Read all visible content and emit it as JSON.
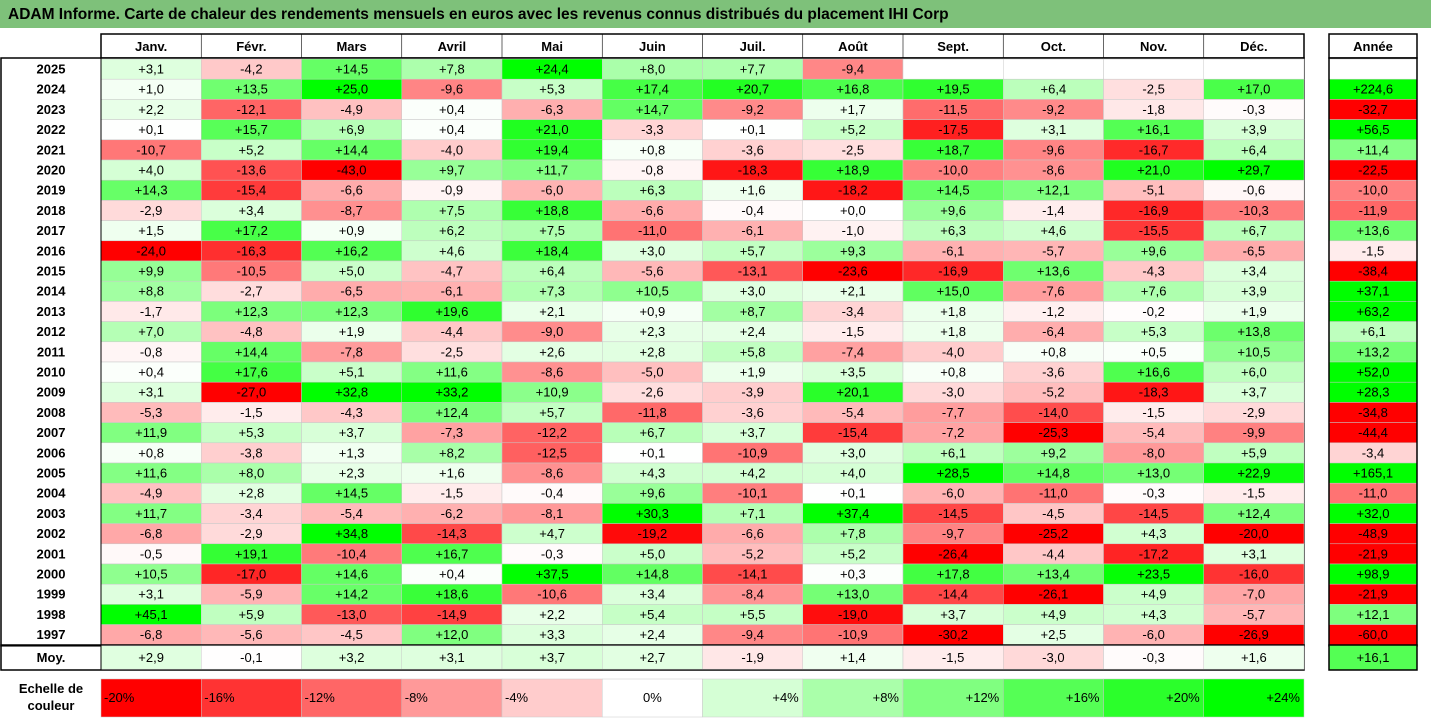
{
  "title": "ADAM Informe. Carte de chaleur des rendements mensuels en euros avec les revenus connus distribués du placement IHI Corp",
  "chart_data": {
    "type": "heatmap",
    "months": [
      "Janv.",
      "Févr.",
      "Mars",
      "Avril",
      "Mai",
      "Juin",
      "Juil.",
      "Août",
      "Sept.",
      "Oct.",
      "Nov.",
      "Déc."
    ],
    "year_header": "Année",
    "rows": [
      {
        "year": "2025",
        "values": [
          "+3,1",
          "-4,2",
          "+14,5",
          "+7,8",
          "+24,4",
          "+8,0",
          "+7,7",
          "-9,4",
          "",
          "",
          "",
          ""
        ],
        "annual": ""
      },
      {
        "year": "2024",
        "values": [
          "+1,0",
          "+13,5",
          "+25,0",
          "-9,6",
          "+5,3",
          "+17,4",
          "+20,7",
          "+16,8",
          "+19,5",
          "+6,4",
          "-2,5",
          "+17,0"
        ],
        "annual": "+224,6"
      },
      {
        "year": "2023",
        "values": [
          "+2,2",
          "-12,1",
          "-4,9",
          "+0,4",
          "-6,3",
          "+14,7",
          "-9,2",
          "+1,7",
          "-11,5",
          "-9,2",
          "-1,8",
          "-0,3"
        ],
        "annual": "-32,7"
      },
      {
        "year": "2022",
        "values": [
          "+0,1",
          "+15,7",
          "+6,9",
          "+0,4",
          "+21,0",
          "-3,3",
          "+0,1",
          "+5,2",
          "-17,5",
          "+3,1",
          "+16,1",
          "+3,9"
        ],
        "annual": "+56,5"
      },
      {
        "year": "2021",
        "values": [
          "-10,7",
          "+5,2",
          "+14,4",
          "-4,0",
          "+19,4",
          "+0,8",
          "-3,6",
          "-2,5",
          "+18,7",
          "-9,6",
          "-16,7",
          "+6,4"
        ],
        "annual": "+11,4"
      },
      {
        "year": "2020",
        "values": [
          "+4,0",
          "-13,6",
          "-43,0",
          "+9,7",
          "+11,7",
          "-0,8",
          "-18,3",
          "+18,9",
          "-10,0",
          "-8,6",
          "+21,0",
          "+29,7"
        ],
        "annual": "-22,5"
      },
      {
        "year": "2019",
        "values": [
          "+14,3",
          "-15,4",
          "-6,6",
          "-0,9",
          "-6,0",
          "+6,3",
          "+1,6",
          "-18,2",
          "+14,5",
          "+12,1",
          "-5,1",
          "-0,6"
        ],
        "annual": "-10,0"
      },
      {
        "year": "2018",
        "values": [
          "-2,9",
          "+3,4",
          "-8,7",
          "+7,5",
          "+18,8",
          "-6,6",
          "-0,4",
          "+0,0",
          "+9,6",
          "-1,4",
          "-16,9",
          "-10,3"
        ],
        "annual": "-11,9"
      },
      {
        "year": "2017",
        "values": [
          "+1,5",
          "+17,2",
          "+0,9",
          "+6,2",
          "+7,5",
          "-11,0",
          "-6,1",
          "-1,0",
          "+6,3",
          "+4,6",
          "-15,5",
          "+6,7"
        ],
        "annual": "+13,6"
      },
      {
        "year": "2016",
        "values": [
          "-24,0",
          "-16,3",
          "+16,2",
          "+4,6",
          "+18,4",
          "+3,0",
          "+5,7",
          "+9,3",
          "-6,1",
          "-5,7",
          "+9,6",
          "-6,5"
        ],
        "annual": "-1,5"
      },
      {
        "year": "2015",
        "values": [
          "+9,9",
          "-10,5",
          "+5,0",
          "-4,7",
          "+6,4",
          "-5,6",
          "-13,1",
          "-23,6",
          "-16,9",
          "+13,6",
          "-4,3",
          "+3,4"
        ],
        "annual": "-38,4"
      },
      {
        "year": "2014",
        "values": [
          "+8,8",
          "-2,7",
          "-6,5",
          "-6,1",
          "+7,3",
          "+10,5",
          "+3,0",
          "+2,1",
          "+15,0",
          "-7,6",
          "+7,6",
          "+3,9"
        ],
        "annual": "+37,1"
      },
      {
        "year": "2013",
        "values": [
          "-1,7",
          "+12,3",
          "+12,3",
          "+19,6",
          "+2,1",
          "+0,9",
          "+8,7",
          "-3,4",
          "+1,8",
          "-1,2",
          "-0,2",
          "+1,9"
        ],
        "annual": "+63,2"
      },
      {
        "year": "2012",
        "values": [
          "+7,0",
          "-4,8",
          "+1,9",
          "-4,4",
          "-9,0",
          "+2,3",
          "+2,4",
          "-1,5",
          "+1,8",
          "-6,4",
          "+5,3",
          "+13,8"
        ],
        "annual": "+6,1"
      },
      {
        "year": "2011",
        "values": [
          "-0,8",
          "+14,4",
          "-7,8",
          "-2,5",
          "+2,6",
          "+2,8",
          "+5,8",
          "-7,4",
          "-4,0",
          "+0,8",
          "+0,5",
          "+10,5"
        ],
        "annual": "+13,2"
      },
      {
        "year": "2010",
        "values": [
          "+0,4",
          "+17,6",
          "+5,1",
          "+11,6",
          "-8,6",
          "-5,0",
          "+1,9",
          "+3,5",
          "+0,8",
          "-3,6",
          "+16,6",
          "+6,0"
        ],
        "annual": "+52,0"
      },
      {
        "year": "2009",
        "values": [
          "+3,1",
          "-27,0",
          "+32,8",
          "+33,2",
          "+10,9",
          "-2,6",
          "-3,9",
          "+20,1",
          "-3,0",
          "-5,2",
          "-18,3",
          "+3,7"
        ],
        "annual": "+28,3"
      },
      {
        "year": "2008",
        "values": [
          "-5,3",
          "-1,5",
          "-4,3",
          "+12,4",
          "+5,7",
          "-11,8",
          "-3,6",
          "-5,4",
          "-7,7",
          "-14,0",
          "-1,5",
          "-2,9"
        ],
        "annual": "-34,8"
      },
      {
        "year": "2007",
        "values": [
          "+11,9",
          "+5,3",
          "+3,7",
          "-7,3",
          "-12,2",
          "+6,7",
          "+3,7",
          "-15,4",
          "-7,2",
          "-25,3",
          "-5,4",
          "-9,9"
        ],
        "annual": "-44,4"
      },
      {
        "year": "2006",
        "values": [
          "+0,8",
          "-3,8",
          "+1,3",
          "+8,2",
          "-12,5",
          "+0,1",
          "-10,9",
          "+3,0",
          "+6,1",
          "+9,2",
          "-8,0",
          "+5,9"
        ],
        "annual": "-3,4"
      },
      {
        "year": "2005",
        "values": [
          "+11,6",
          "+8,0",
          "+2,3",
          "+1,6",
          "-8,6",
          "+4,3",
          "+4,2",
          "+4,0",
          "+28,5",
          "+14,8",
          "+13,0",
          "+22,9"
        ],
        "annual": "+165,1"
      },
      {
        "year": "2004",
        "values": [
          "-4,9",
          "+2,8",
          "+14,5",
          "-1,5",
          "-0,4",
          "+9,6",
          "-10,1",
          "+0,1",
          "-6,0",
          "-11,0",
          "-0,3",
          "-1,5"
        ],
        "annual": "-11,0"
      },
      {
        "year": "2003",
        "values": [
          "+11,7",
          "-3,4",
          "-5,4",
          "-6,2",
          "-8,1",
          "+30,3",
          "+7,1",
          "+37,4",
          "-14,5",
          "-4,5",
          "-14,5",
          "+12,4"
        ],
        "annual": "+32,0"
      },
      {
        "year": "2002",
        "values": [
          "-6,8",
          "-2,9",
          "+34,8",
          "-14,3",
          "+4,7",
          "-19,2",
          "-6,6",
          "+7,8",
          "-9,7",
          "-25,2",
          "+4,3",
          "-20,0"
        ],
        "annual": "-48,9"
      },
      {
        "year": "2001",
        "values": [
          "-0,5",
          "+19,1",
          "-10,4",
          "+16,7",
          "-0,3",
          "+5,0",
          "-5,2",
          "+5,2",
          "-26,4",
          "-4,4",
          "-17,2",
          "+3,1"
        ],
        "annual": "-21,9"
      },
      {
        "year": "2000",
        "values": [
          "+10,5",
          "-17,0",
          "+14,6",
          "+0,4",
          "+37,5",
          "+14,8",
          "-14,1",
          "+0,3",
          "+17,8",
          "+13,4",
          "+23,5",
          "-16,0"
        ],
        "annual": "+98,9"
      },
      {
        "year": "1999",
        "values": [
          "+3,1",
          "-5,9",
          "+14,2",
          "+18,6",
          "-10,6",
          "+3,4",
          "-8,4",
          "+13,0",
          "-14,4",
          "-26,1",
          "+4,9",
          "-7,0"
        ],
        "annual": "-21,9"
      },
      {
        "year": "1998",
        "values": [
          "+45,1",
          "+5,9",
          "-13,0",
          "-14,9",
          "+2,2",
          "+5,4",
          "+5,5",
          "-19,0",
          "+3,7",
          "+4,9",
          "+4,3",
          "-5,7"
        ],
        "annual": "+12,1"
      },
      {
        "year": "1997",
        "values": [
          "-6,8",
          "-5,6",
          "-4,5",
          "+12,0",
          "+3,3",
          "+2,4",
          "-9,4",
          "-10,9",
          "-30,2",
          "+2,5",
          "-6,0",
          "-26,9"
        ],
        "annual": "-60,0"
      }
    ],
    "average": {
      "label": "Moy.",
      "values": [
        "+2,9",
        "-0,1",
        "+3,2",
        "+3,1",
        "+3,7",
        "+2,7",
        "-1,9",
        "+1,4",
        "-1,5",
        "-3,0",
        "-0,3",
        "+1,6"
      ],
      "annual": "+16,1"
    },
    "scale": {
      "label": [
        "Echelle de",
        "couleur"
      ],
      "steps": [
        {
          "text": "-20%",
          "value": -20,
          "align": "start"
        },
        {
          "text": "-16%",
          "value": -16,
          "align": "start"
        },
        {
          "text": "-12%",
          "value": -12,
          "align": "start"
        },
        {
          "text": "-8%",
          "value": -8,
          "align": "start"
        },
        {
          "text": "-4%",
          "value": -4,
          "align": "start"
        },
        {
          "text": "0%",
          "value": 0,
          "align": "middle"
        },
        {
          "text": "+4%",
          "value": 4,
          "align": "end"
        },
        {
          "text": "+8%",
          "value": 8,
          "align": "end"
        },
        {
          "text": "+12%",
          "value": 12,
          "align": "end"
        },
        {
          "text": "+16%",
          "value": 16,
          "align": "end"
        },
        {
          "text": "+20%",
          "value": 20,
          "align": "end"
        },
        {
          "text": "+24%",
          "value": 24,
          "align": "end"
        }
      ]
    },
    "colors": {
      "negative": "#ff0000",
      "neutral": "#ffffff",
      "positive": "#00ff00",
      "title_bar": "#7ec17a"
    }
  }
}
